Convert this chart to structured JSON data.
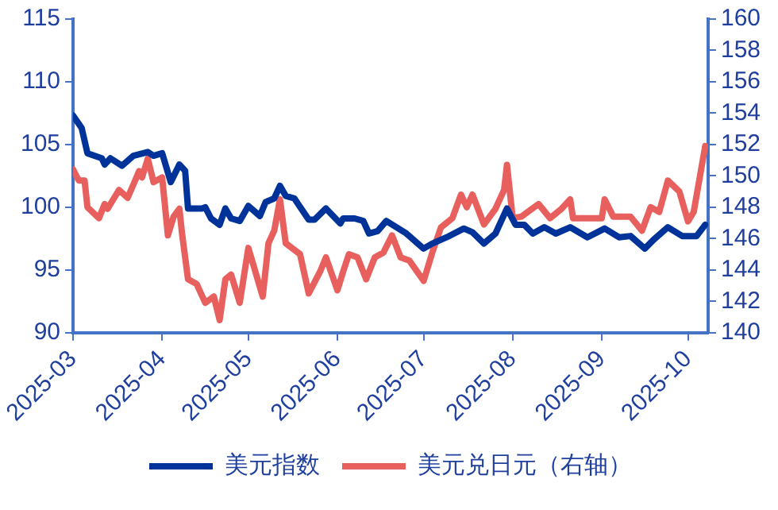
{
  "chart_data": {
    "type": "line",
    "legend": "bottom",
    "grid": false,
    "marker": "none",
    "line_style": "solid",
    "xlim": [
      "2025-03-01",
      "2025-10-08"
    ],
    "xticks": [
      {
        "value": "2025-03-01",
        "label": "2025-03"
      },
      {
        "value": "2025-04-01",
        "label": "2025-04"
      },
      {
        "value": "2025-05-01",
        "label": "2025-05"
      },
      {
        "value": "2025-06-01",
        "label": "2025-06"
      },
      {
        "value": "2025-07-01",
        "label": "2025-07"
      },
      {
        "value": "2025-08-01",
        "label": "2025-08"
      },
      {
        "value": "2025-09-01",
        "label": "2025-09"
      },
      {
        "value": "2025-10-01",
        "label": "2025-10"
      }
    ],
    "ylim": [
      90,
      115
    ],
    "yticks": [
      90,
      95,
      100,
      105,
      110,
      115
    ],
    "y2lim": [
      140,
      160
    ],
    "y2ticks": [
      140,
      142,
      144,
      146,
      148,
      150,
      152,
      154,
      156,
      158,
      160
    ],
    "series": [
      {
        "name": "美元指数",
        "color": "#003399",
        "x": [
          "2025-03-01",
          "2025-03-04",
          "2025-03-06",
          "2025-03-11",
          "2025-03-12",
          "2025-03-14",
          "2025-03-18",
          "2025-03-22",
          "2025-03-27",
          "2025-03-29",
          "2025-04-01",
          "2025-04-04",
          "2025-04-07",
          "2025-04-09",
          "2025-04-10",
          "2025-04-15",
          "2025-04-16",
          "2025-04-18",
          "2025-04-21",
          "2025-04-23",
          "2025-04-25",
          "2025-04-28",
          "2025-05-01",
          "2025-05-05",
          "2025-05-07",
          "2025-05-10",
          "2025-05-12",
          "2025-05-14",
          "2025-05-17",
          "2025-05-22",
          "2025-05-24",
          "2025-05-28",
          "2025-06-02",
          "2025-06-03",
          "2025-06-07",
          "2025-06-10",
          "2025-06-12",
          "2025-06-15",
          "2025-06-18",
          "2025-06-25",
          "2025-07-01",
          "2025-07-04",
          "2025-07-09",
          "2025-07-15",
          "2025-07-18",
          "2025-07-22",
          "2025-07-26",
          "2025-07-30",
          "2025-08-02",
          "2025-08-05",
          "2025-08-08",
          "2025-08-12",
          "2025-08-16",
          "2025-08-21",
          "2025-08-27",
          "2025-09-02",
          "2025-09-07",
          "2025-09-11",
          "2025-09-16",
          "2025-09-19",
          "2025-09-24",
          "2025-09-29",
          "2025-10-04",
          "2025-10-07"
        ],
        "values": [
          107.3,
          106.3,
          104.3,
          103.9,
          103.4,
          103.9,
          103.3,
          104.1,
          104.4,
          104.1,
          104.3,
          102,
          103.4,
          102.9,
          99.9,
          99.9,
          100,
          99.1,
          98.6,
          99.9,
          99.1,
          98.9,
          100.1,
          99.3,
          100.4,
          100.7,
          101.7,
          100.9,
          100.7,
          99,
          99,
          99.9,
          98.7,
          99.1,
          99.1,
          98.9,
          97.9,
          98.1,
          98.9,
          97.9,
          96.7,
          97.1,
          97.6,
          98.3,
          98,
          97.1,
          97.9,
          99.9,
          98.6,
          98.6,
          97.9,
          98.4,
          97.9,
          98.4,
          97.6,
          98.3,
          97.6,
          97.7,
          96.7,
          97.4,
          98.4,
          97.7,
          97.7,
          98.6
        ]
      },
      {
        "name": "美元兑日元（右轴）",
        "color": "#e8605e",
        "axis": "y2",
        "x": [
          "2025-03-01",
          "2025-03-03",
          "2025-03-05",
          "2025-03-06",
          "2025-03-10",
          "2025-03-12",
          "2025-03-13",
          "2025-03-17",
          "2025-03-20",
          "2025-03-24",
          "2025-03-25",
          "2025-03-27",
          "2025-03-29",
          "2025-04-01",
          "2025-04-03",
          "2025-04-05",
          "2025-04-07",
          "2025-04-08",
          "2025-04-10",
          "2025-04-13",
          "2025-04-16",
          "2025-04-19",
          "2025-04-21",
          "2025-04-23",
          "2025-04-25",
          "2025-04-28",
          "2025-05-01",
          "2025-05-06",
          "2025-05-08",
          "2025-05-10",
          "2025-05-12",
          "2025-05-14",
          "2025-05-19",
          "2025-05-22",
          "2025-05-26",
          "2025-05-28",
          "2025-06-01",
          "2025-06-03",
          "2025-06-05",
          "2025-06-08",
          "2025-06-11",
          "2025-06-14",
          "2025-06-17",
          "2025-06-20",
          "2025-06-23",
          "2025-06-26",
          "2025-07-01",
          "2025-07-04",
          "2025-07-07",
          "2025-07-11",
          "2025-07-14",
          "2025-07-16",
          "2025-07-18",
          "2025-07-22",
          "2025-07-26",
          "2025-07-29",
          "2025-07-30",
          "2025-08-01",
          "2025-08-04",
          "2025-08-10",
          "2025-08-14",
          "2025-08-18",
          "2025-08-21",
          "2025-08-22",
          "2025-08-27",
          "2025-09-01",
          "2025-09-02",
          "2025-09-05",
          "2025-09-11",
          "2025-09-15",
          "2025-09-18",
          "2025-09-21",
          "2025-09-24",
          "2025-09-28",
          "2025-10-01",
          "2025-10-03",
          "2025-10-07"
        ],
        "values": [
          150.4,
          149.7,
          149.7,
          148,
          147.3,
          148.2,
          147.9,
          149.1,
          148.6,
          150.3,
          149.9,
          151.1,
          149.6,
          149.9,
          146.2,
          147.4,
          147.9,
          146.2,
          143.4,
          143.1,
          141.9,
          142.3,
          140.8,
          143.4,
          143.7,
          141.9,
          145.4,
          142.3,
          145.7,
          146.5,
          148.5,
          145.7,
          145,
          142.5,
          143.9,
          144.8,
          142.7,
          143.9,
          145,
          144.8,
          143.4,
          144.8,
          145.1,
          146.2,
          144.8,
          144.6,
          143.3,
          145.1,
          146.7,
          147.3,
          148.8,
          148,
          148.8,
          146.9,
          147.9,
          149.1,
          150.7,
          147.3,
          147.4,
          148.2,
          147.3,
          147.9,
          148.5,
          147.3,
          147.3,
          147.3,
          148.5,
          147.4,
          147.4,
          146.5,
          148,
          147.7,
          149.7,
          149,
          147.1,
          147.7,
          151.9
        ]
      }
    ]
  }
}
